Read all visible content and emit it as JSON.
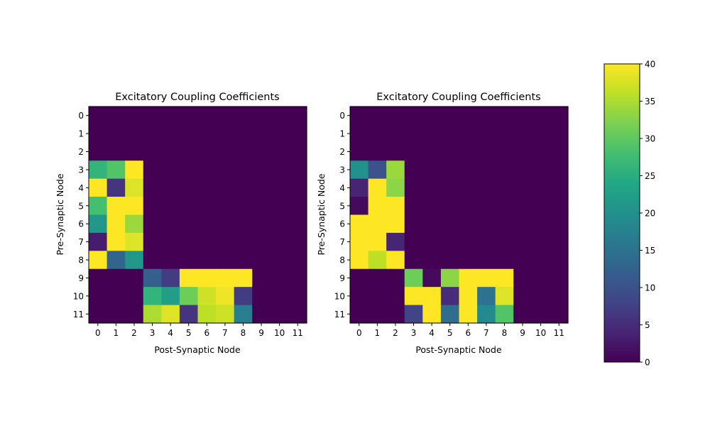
{
  "chart_data": [
    {
      "type": "heatmap",
      "title": "Excitatory Coupling Coefficients",
      "xlabel": "Post-Synaptic Node",
      "ylabel": "Pre-Synaptic Node",
      "x_ticks": [
        "0",
        "1",
        "2",
        "3",
        "4",
        "5",
        "6",
        "7",
        "8",
        "9",
        "10",
        "11"
      ],
      "y_ticks": [
        "0",
        "1",
        "2",
        "3",
        "4",
        "5",
        "6",
        "7",
        "8",
        "9",
        "10",
        "11"
      ],
      "values": [
        [
          0,
          0,
          0,
          0,
          0,
          0,
          0,
          0,
          0,
          0,
          0,
          0
        ],
        [
          0,
          0,
          0,
          0,
          0,
          0,
          0,
          0,
          0,
          0,
          0,
          0
        ],
        [
          0,
          0,
          0,
          0,
          0,
          0,
          0,
          0,
          0,
          0,
          0,
          0
        ],
        [
          26,
          29,
          40,
          0,
          0,
          0,
          0,
          0,
          0,
          0,
          0,
          0
        ],
        [
          40,
          6,
          38,
          0,
          0,
          0,
          0,
          0,
          0,
          0,
          0,
          0
        ],
        [
          28,
          40,
          40,
          0,
          0,
          0,
          0,
          0,
          0,
          0,
          0,
          0
        ],
        [
          21,
          40,
          34,
          0,
          0,
          0,
          0,
          0,
          0,
          0,
          0,
          0
        ],
        [
          3,
          40,
          38,
          0,
          0,
          0,
          0,
          0,
          0,
          0,
          0,
          0
        ],
        [
          40,
          13,
          21,
          0,
          0,
          0,
          0,
          0,
          0,
          0,
          0,
          0
        ],
        [
          0,
          0,
          0,
          12,
          7,
          40,
          40,
          40,
          40,
          0,
          0,
          0
        ],
        [
          0,
          0,
          0,
          26,
          22,
          31,
          37,
          39,
          7,
          0,
          0,
          0
        ],
        [
          0,
          0,
          0,
          35,
          38,
          6,
          36,
          37,
          17,
          0,
          0,
          0
        ]
      ]
    },
    {
      "type": "heatmap",
      "title": "Excitatory Coupling Coefficients",
      "xlabel": "Post-Synaptic Node",
      "ylabel": "Pre-Synaptic Node",
      "x_ticks": [
        "0",
        "1",
        "2",
        "3",
        "4",
        "5",
        "6",
        "7",
        "8",
        "9",
        "10",
        "11"
      ],
      "y_ticks": [
        "0",
        "1",
        "2",
        "3",
        "4",
        "5",
        "6",
        "7",
        "8",
        "9",
        "10",
        "11"
      ],
      "values": [
        [
          0,
          0,
          0,
          0,
          0,
          0,
          0,
          0,
          0,
          0,
          0,
          0
        ],
        [
          0,
          0,
          0,
          0,
          0,
          0,
          0,
          0,
          0,
          0,
          0,
          0
        ],
        [
          0,
          0,
          0,
          0,
          0,
          0,
          0,
          0,
          0,
          0,
          0,
          0
        ],
        [
          20,
          10,
          34,
          0,
          0,
          0,
          0,
          0,
          0,
          0,
          0,
          0
        ],
        [
          4,
          40,
          33,
          0,
          0,
          0,
          0,
          0,
          0,
          0,
          0,
          0
        ],
        [
          1,
          40,
          40,
          0,
          0,
          0,
          0,
          0,
          0,
          0,
          0,
          0
        ],
        [
          40,
          40,
          40,
          0,
          0,
          0,
          0,
          0,
          0,
          0,
          0,
          0
        ],
        [
          40,
          40,
          4,
          0,
          0,
          0,
          0,
          0,
          0,
          0,
          0,
          0
        ],
        [
          40,
          36,
          40,
          0,
          0,
          0,
          0,
          0,
          0,
          0,
          0,
          0
        ],
        [
          0,
          0,
          0,
          31,
          1,
          33,
          40,
          40,
          40,
          0,
          0,
          0
        ],
        [
          0,
          0,
          0,
          40,
          40,
          5,
          40,
          15,
          38,
          0,
          0,
          0
        ],
        [
          0,
          0,
          0,
          8,
          40,
          14,
          40,
          19,
          29,
          0,
          0,
          0
        ]
      ]
    }
  ],
  "colorbar": {
    "colormap": "viridis",
    "min": 0,
    "max": 40,
    "ticks": [
      {
        "value": 0,
        "label": "0"
      },
      {
        "value": 5,
        "label": "5"
      },
      {
        "value": 10,
        "label": "10"
      },
      {
        "value": 15,
        "label": "15"
      },
      {
        "value": 20,
        "label": "20"
      },
      {
        "value": 25,
        "label": "25"
      },
      {
        "value": 30,
        "label": "30"
      },
      {
        "value": 35,
        "label": "35"
      },
      {
        "value": 40,
        "label": "40"
      }
    ]
  }
}
